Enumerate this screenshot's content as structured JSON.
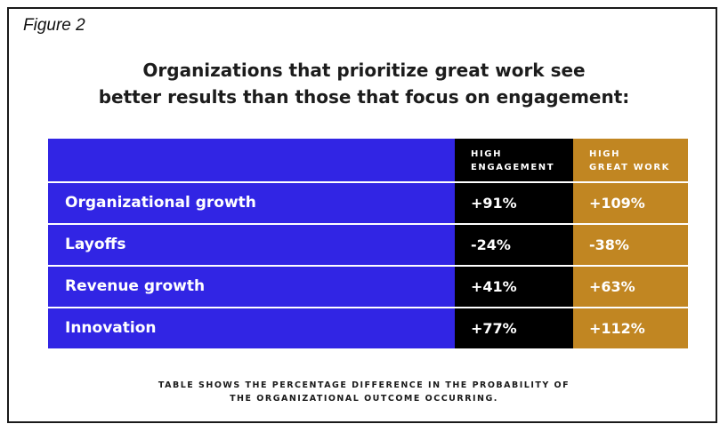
{
  "figure_label": "Figure 2",
  "title_lines": [
    "Organizations that prioritize great work see",
    "better results than those that focus on engagement:"
  ],
  "colors": {
    "label_column": "#3125e4",
    "high_engagement_column": "#000000",
    "high_great_work_column": "#c18622"
  },
  "chart_data": {
    "type": "table",
    "columns": [
      {
        "lines": [
          "HIGH",
          "ENGAGEMENT"
        ]
      },
      {
        "lines": [
          "HIGH",
          "GREAT WORK"
        ]
      }
    ],
    "rows": [
      {
        "label": "Organizational growth",
        "high_engagement": "+91%",
        "high_great_work": "+109%"
      },
      {
        "label": "Layoffs",
        "high_engagement": "-24%",
        "high_great_work": "-38%"
      },
      {
        "label": "Revenue growth",
        "high_engagement": "+41%",
        "high_great_work": "+63%"
      },
      {
        "label": "Innovation",
        "high_engagement": "+77%",
        "high_great_work": "+112%"
      }
    ]
  },
  "footnote_lines": [
    "TABLE SHOWS THE PERCENTAGE DIFFERENCE IN THE PROBABILITY OF",
    "THE ORGANIZATIONAL OUTCOME OCCURRING."
  ]
}
